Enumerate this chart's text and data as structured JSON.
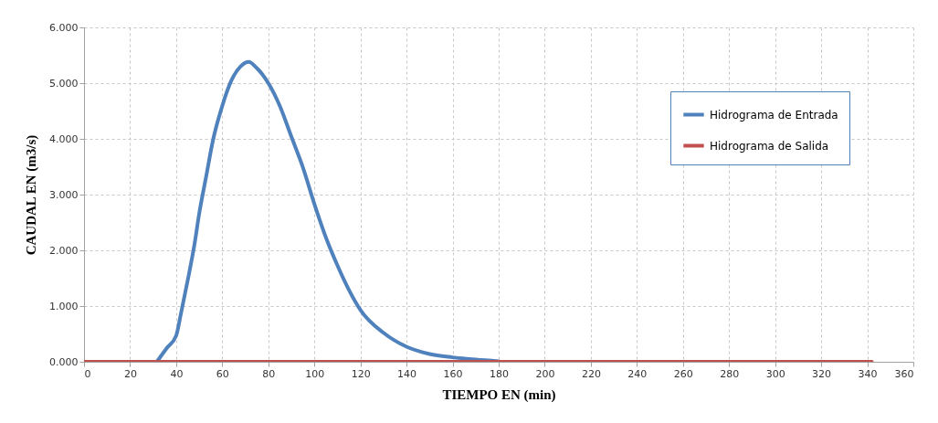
{
  "chart_data": {
    "type": "line",
    "xlabel": "TIEMPO  EN (min)",
    "ylabel": "CAUDAL  EN  (m3/s)",
    "xlim": [
      0,
      360
    ],
    "xticks": [
      0,
      20,
      40,
      60,
      80,
      100,
      120,
      140,
      160,
      180,
      200,
      220,
      240,
      260,
      280,
      300,
      320,
      340,
      360
    ],
    "ylim": [
      0,
      6
    ],
    "yticks": [
      {
        "value": 0,
        "label": "0.000"
      },
      {
        "value": 1,
        "label": "1.000"
      },
      {
        "value": 2,
        "label": "2.000"
      },
      {
        "value": 3,
        "label": "3.000"
      },
      {
        "value": 4,
        "label": "4.000"
      },
      {
        "value": 5,
        "label": "5.000"
      },
      {
        "value": 6,
        "label": "6.000"
      }
    ],
    "grid": true,
    "legend": "top right",
    "series": [
      {
        "name": "Hidrograma de Entrada",
        "color": "#4f81bd",
        "x": [
          31.6,
          36,
          40,
          42,
          45,
          48,
          50,
          53,
          56,
          60,
          64,
          68,
          71.5,
          75,
          80,
          85,
          90,
          95,
          100,
          105,
          110,
          115,
          120,
          130,
          140,
          150,
          160,
          170,
          180
        ],
        "values": [
          0,
          0.25,
          0.47,
          0.85,
          1.46,
          2.12,
          2.66,
          3.32,
          3.98,
          4.59,
          5.05,
          5.3,
          5.38,
          5.27,
          5.0,
          4.59,
          4.04,
          3.49,
          2.83,
          2.23,
          1.73,
          1.29,
          0.93,
          0.52,
          0.27,
          0.14,
          0.08,
          0.04,
          0.01
        ]
      },
      {
        "name": "Hidrograma de Salida",
        "color": "#c0504d",
        "x": [
          0,
          342
        ],
        "values": [
          0,
          0
        ]
      }
    ]
  }
}
